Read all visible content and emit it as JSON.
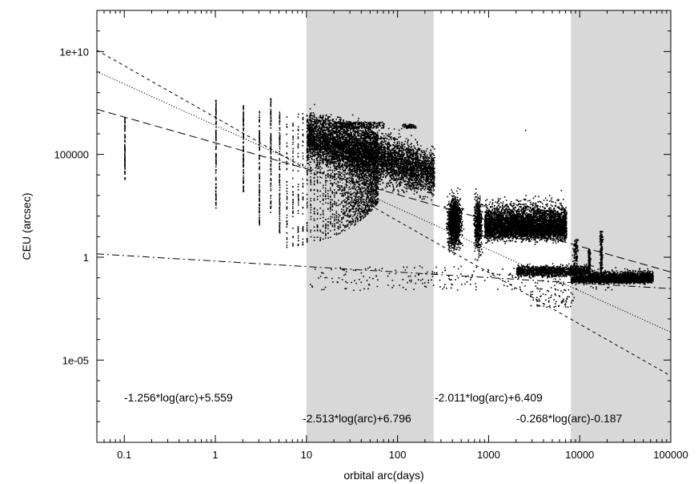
{
  "chart_data": {
    "type": "scatter",
    "title": "",
    "xlabel": "orbital arc(days)",
    "ylabel": "CEU (arcsec)",
    "xscale": "log",
    "yscale": "log",
    "xlim": [
      0.05,
      100000
    ],
    "ylim": [
      1e-09,
      1000000000000.0
    ],
    "xticks": [
      {
        "value": 0.1,
        "label": "0.1"
      },
      {
        "value": 1,
        "label": "1"
      },
      {
        "value": 10,
        "label": "10"
      },
      {
        "value": 100,
        "label": "100"
      },
      {
        "value": 1000,
        "label": "1000"
      },
      {
        "value": 10000,
        "label": "10000"
      },
      {
        "value": 100000,
        "label": "100000"
      }
    ],
    "yticks": [
      {
        "value": 1e-05,
        "label": "1e-05"
      },
      {
        "value": 1,
        "label": "1"
      },
      {
        "value": 100000,
        "label": "100000"
      },
      {
        "value": 10000000000.0,
        "label": "1e+10"
      }
    ],
    "shaded_bands": [
      {
        "x": [
          10,
          250
        ],
        "color": "#d8d8d8"
      },
      {
        "x": [
          8000,
          100000
        ],
        "color": "#d8d8d8"
      }
    ],
    "fit_lines": [
      {
        "label": "-1.256*log(arc)+5.559",
        "slope": -1.256,
        "intercept": 5.559,
        "style": "longdash"
      },
      {
        "label": "-2.513*log(arc)+6.796",
        "slope": -2.513,
        "intercept": 6.796,
        "style": "shortdash"
      },
      {
        "label": "-2.011*log(arc)+6.409",
        "slope": -2.011,
        "intercept": 6.409,
        "style": "dotted"
      },
      {
        "label": "-0.268*log(arc)-0.187",
        "slope": -0.268,
        "intercept": -0.187,
        "style": "dashdot"
      }
    ],
    "point_color": "#000000",
    "grid": false,
    "legend": "none"
  }
}
